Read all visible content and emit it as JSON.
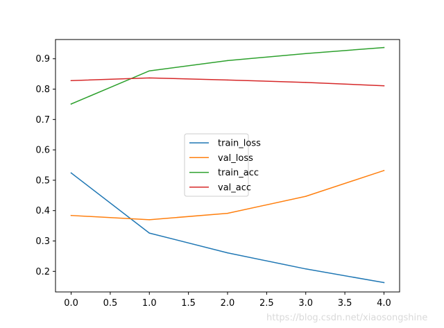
{
  "chart_data": {
    "type": "line",
    "title": "",
    "xlabel": "",
    "ylabel": "",
    "x": [
      0,
      1,
      2,
      3,
      4
    ],
    "xlim": [
      -0.2,
      4.2
    ],
    "ylim": [
      0.1322,
      0.9633
    ],
    "xticks": [
      0.0,
      0.5,
      1.0,
      1.5,
      2.0,
      2.5,
      3.0,
      3.5,
      4.0
    ],
    "xtick_labels": [
      "0.0",
      "0.5",
      "1.0",
      "1.5",
      "2.0",
      "2.5",
      "3.0",
      "3.5",
      "4.0"
    ],
    "yticks": [
      0.2,
      0.3,
      0.4,
      0.5,
      0.6,
      0.7,
      0.8,
      0.9
    ],
    "ytick_labels": [
      "0.2",
      "0.3",
      "0.4",
      "0.5",
      "0.6",
      "0.7",
      "0.8",
      "0.9"
    ],
    "grid": false,
    "legend_position": "center",
    "series": [
      {
        "name": "train_loss",
        "color": "#1f77b4",
        "values": [
          0.524,
          0.326,
          0.261,
          0.208,
          0.163
        ]
      },
      {
        "name": "val_loss",
        "color": "#ff7f0e",
        "values": [
          0.384,
          0.37,
          0.391,
          0.447,
          0.532
        ]
      },
      {
        "name": "train_acc",
        "color": "#2ca02c",
        "values": [
          0.751,
          0.86,
          0.894,
          0.917,
          0.937
        ]
      },
      {
        "name": "val_acc",
        "color": "#d62728",
        "values": [
          0.828,
          0.837,
          0.83,
          0.822,
          0.811
        ]
      }
    ]
  },
  "watermark": "https://blog.csdn.net/xiaosongshine"
}
